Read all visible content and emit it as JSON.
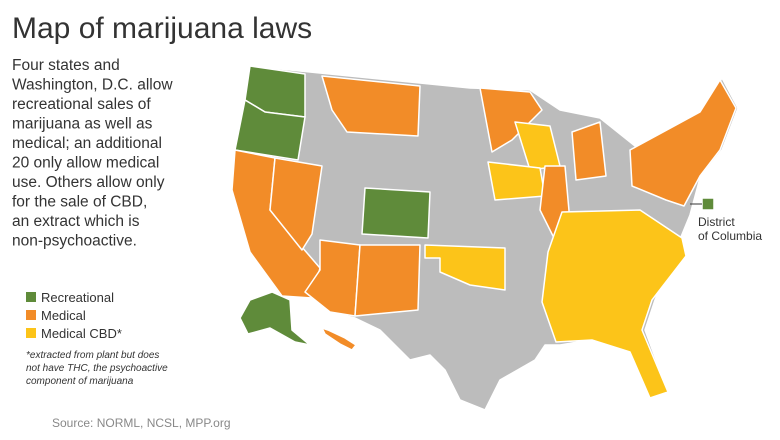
{
  "header": {
    "title": "Map of marijuana laws"
  },
  "description": [
    "Four states and",
    "Washington, D.C. allow",
    "recreational sales of",
    "marijuana as well as",
    "medical; an additional",
    "20 only allow medical",
    "use. Others allow only",
    "for the sale of CBD,",
    "an extract which is",
    "non-psychoactive."
  ],
  "legend": [
    {
      "label": "Recreational",
      "color": "#5f8b3a"
    },
    {
      "label": "Medical",
      "color": "#f28c28"
    },
    {
      "label": "Medical CBD*",
      "color": "#fcc419"
    }
  ],
  "other_color": "#bcbcbc",
  "footnote": [
    "*extracted from plant but does",
    "not have THC, the psychoactive",
    "component of marijuana"
  ],
  "dc_label": [
    "District",
    "of Columbia"
  ],
  "source": "Source: NORML, NCSL, MPP.org"
}
